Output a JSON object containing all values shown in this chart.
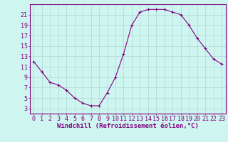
{
  "x": [
    0,
    1,
    2,
    3,
    4,
    5,
    6,
    7,
    8,
    9,
    10,
    11,
    12,
    13,
    14,
    15,
    16,
    17,
    18,
    19,
    20,
    21,
    22,
    23
  ],
  "y": [
    12,
    10,
    8,
    7.5,
    6.5,
    5,
    4,
    3.5,
    3.5,
    6,
    9,
    13.5,
    19,
    21.5,
    22,
    22,
    22,
    21.5,
    21,
    19,
    16.5,
    14.5,
    12.5,
    11.5
  ],
  "line_color": "#800080",
  "marker": "+",
  "bg_color": "#cef5f0",
  "grid_color": "#b0d8d0",
  "axis_color": "#800080",
  "tick_color": "#800080",
  "xlabel": "Windchill (Refroidissement éolien,°C)",
  "ylabel": "",
  "ylim": [
    2,
    23
  ],
  "xlim": [
    -0.5,
    23.5
  ],
  "yticks": [
    3,
    5,
    7,
    9,
    11,
    13,
    15,
    17,
    19,
    21
  ],
  "xticks": [
    0,
    1,
    2,
    3,
    4,
    5,
    6,
    7,
    8,
    9,
    10,
    11,
    12,
    13,
    14,
    15,
    16,
    17,
    18,
    19,
    20,
    21,
    22,
    23
  ],
  "fontsize_ticks": 6,
  "fontsize_xlabel": 6.5,
  "title": ""
}
